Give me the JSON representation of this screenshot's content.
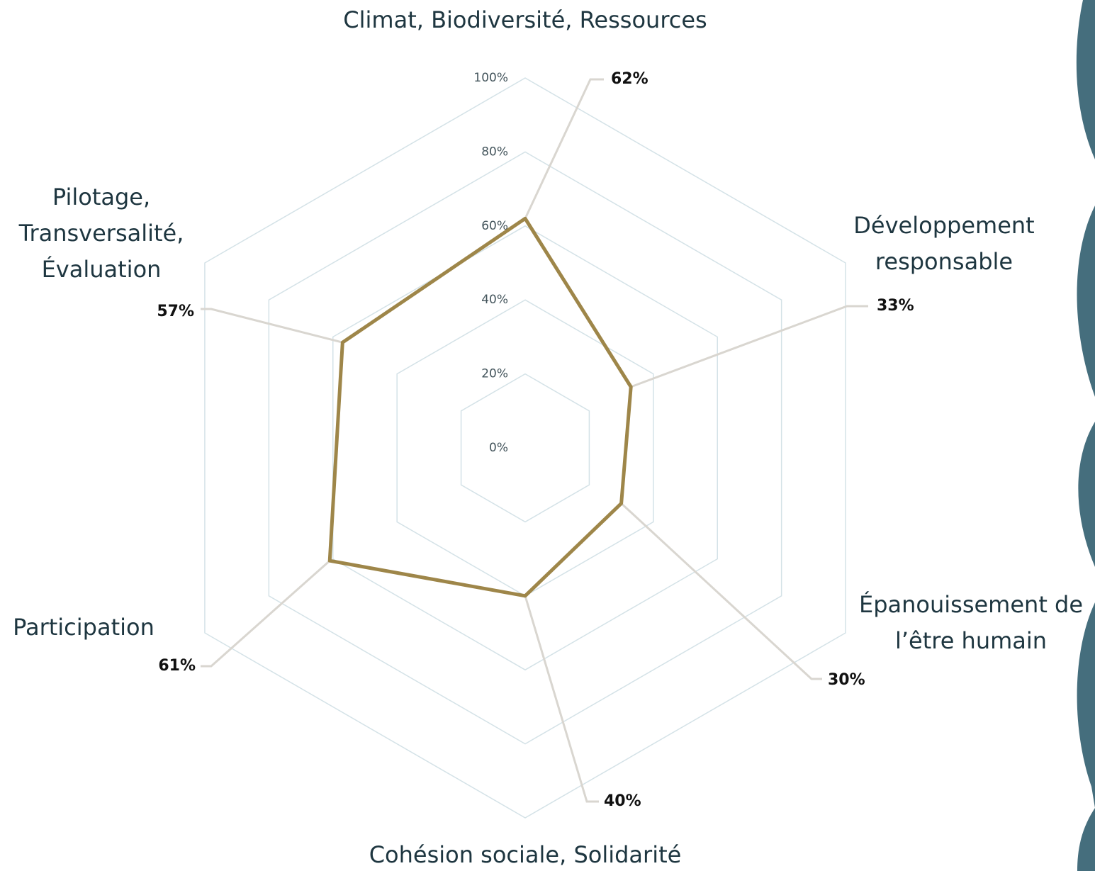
{
  "chart_data": {
    "type": "radar",
    "categories": [
      [
        "Climat, Biodiversité, Ressources"
      ],
      [
        "Développement",
        "responsable"
      ],
      [
        "Épanouissement de",
        "l’être humain"
      ],
      [
        "Cohésion sociale, Solidarité"
      ],
      [
        "Participation"
      ],
      [
        "Pilotage,",
        "Transversalité,",
        "Évaluation"
      ]
    ],
    "values": [
      62,
      33,
      30,
      40,
      61,
      57
    ],
    "value_labels": [
      "62%",
      "33%",
      "30%",
      "40%",
      "61%",
      "57%"
    ],
    "color": "#9e8649",
    "rlim": [
      0,
      100
    ],
    "rticks": [
      {
        "value": 0,
        "label": "0%"
      },
      {
        "value": 20,
        "label": "20%"
      },
      {
        "value": 40,
        "label": "40%"
      },
      {
        "value": 60,
        "label": "60%"
      },
      {
        "value": 80,
        "label": "80%"
      },
      {
        "value": 100,
        "label": "100%"
      }
    ],
    "grid": true
  }
}
